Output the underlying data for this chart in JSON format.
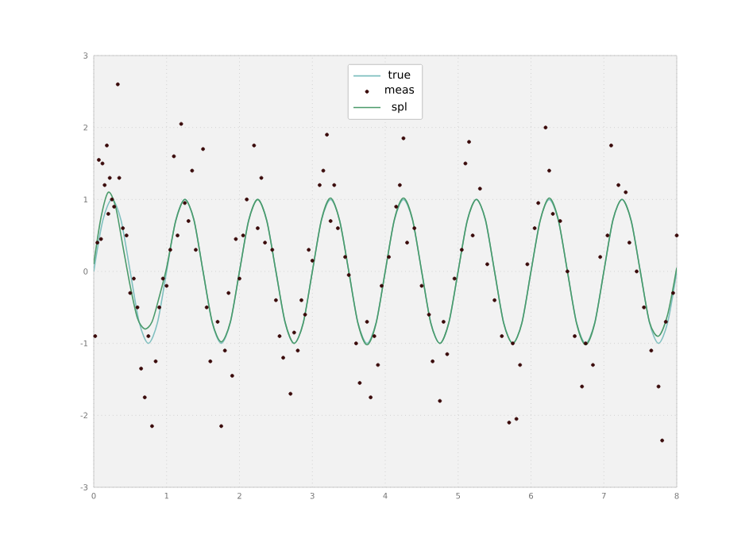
{
  "chart_data": {
    "type": "line",
    "xlim": [
      0,
      8
    ],
    "ylim": [
      -3,
      3
    ],
    "xticks": [
      0,
      1,
      2,
      3,
      4,
      5,
      6,
      7,
      8
    ],
    "yticks": [
      -3,
      -2,
      -1,
      0,
      1,
      2,
      3
    ],
    "grid": true,
    "legend": "top",
    "series": [
      {
        "name": "true",
        "color": "#7fbfbf",
        "x": [
          0,
          0.125,
          0.25,
          0.375,
          0.5,
          0.625,
          0.75,
          0.875,
          1,
          1.125,
          1.25,
          1.375,
          1.5,
          1.625,
          1.75,
          1.875,
          2,
          2.125,
          2.25,
          2.375,
          2.5,
          2.625,
          2.75,
          2.875,
          3,
          3.125,
          3.25,
          3.375,
          3.5,
          3.625,
          3.75,
          3.875,
          4,
          4.125,
          4.25,
          4.375,
          4.5,
          4.625,
          4.75,
          4.875,
          5,
          5.125,
          5.25,
          5.375,
          5.5,
          5.625,
          5.75,
          5.875,
          6,
          6.125,
          6.25,
          6.375,
          6.5,
          6.625,
          6.75,
          6.875,
          7,
          7.125,
          7.25,
          7.375,
          7.5,
          7.625,
          7.75,
          7.875,
          8
        ],
        "values": [
          0,
          0.71,
          1,
          0.71,
          0,
          -0.71,
          -1,
          -0.71,
          0,
          0.71,
          1,
          0.71,
          0,
          -0.71,
          -1,
          -0.71,
          0,
          0.71,
          1,
          0.71,
          0,
          -0.71,
          -1,
          -0.71,
          0,
          0.71,
          1,
          0.71,
          0,
          -0.71,
          -1,
          -0.71,
          0,
          0.71,
          1,
          0.71,
          0,
          -0.71,
          -1,
          -0.71,
          0,
          0.71,
          1,
          0.71,
          0,
          -0.71,
          -1,
          -0.71,
          0,
          0.71,
          1,
          0.71,
          0,
          -0.71,
          -1,
          -0.71,
          0,
          0.71,
          1,
          0.71,
          0,
          -0.71,
          -1,
          -0.71,
          0
        ]
      },
      {
        "name": "meas",
        "type": "scatter",
        "marker": "circle",
        "color": "#3a0a0a",
        "x": [
          0.02,
          0.05,
          0.07,
          0.1,
          0.12,
          0.15,
          0.18,
          0.2,
          0.22,
          0.25,
          0.28,
          0.33,
          0.35,
          0.4,
          0.45,
          0.5,
          0.55,
          0.6,
          0.65,
          0.7,
          0.75,
          0.8,
          0.85,
          0.9,
          0.95,
          1.0,
          1.05,
          1.1,
          1.15,
          1.2,
          1.25,
          1.3,
          1.35,
          1.4,
          1.5,
          1.55,
          1.6,
          1.7,
          1.75,
          1.8,
          1.85,
          1.9,
          1.95,
          2.0,
          2.05,
          2.1,
          2.2,
          2.25,
          2.3,
          2.35,
          2.45,
          2.5,
          2.55,
          2.6,
          2.7,
          2.75,
          2.8,
          2.85,
          2.9,
          2.95,
          3.0,
          3.1,
          3.15,
          3.2,
          3.25,
          3.3,
          3.35,
          3.45,
          3.5,
          3.6,
          3.65,
          3.75,
          3.8,
          3.85,
          3.9,
          3.95,
          4.05,
          4.15,
          4.2,
          4.25,
          4.3,
          4.4,
          4.5,
          4.6,
          4.65,
          4.75,
          4.8,
          4.85,
          4.95,
          5.05,
          5.1,
          5.15,
          5.2,
          5.3,
          5.4,
          5.5,
          5.6,
          5.7,
          5.75,
          5.8,
          5.85,
          5.95,
          6.05,
          6.1,
          6.2,
          6.25,
          6.3,
          6.4,
          6.5,
          6.6,
          6.7,
          6.75,
          6.85,
          6.95,
          7.05,
          7.1,
          7.2,
          7.3,
          7.35,
          7.45,
          7.55,
          7.65,
          7.75,
          7.8,
          7.85,
          7.95,
          8.0
        ],
        "values": [
          -0.9,
          0.4,
          1.55,
          0.45,
          1.5,
          1.2,
          1.75,
          0.8,
          1.3,
          1.0,
          0.9,
          2.6,
          1.3,
          0.6,
          0.5,
          -0.3,
          -0.1,
          -0.5,
          -1.35,
          -1.75,
          -0.9,
          -2.15,
          -1.25,
          -0.5,
          -0.1,
          -0.2,
          0.3,
          1.6,
          0.5,
          2.05,
          0.95,
          0.7,
          1.4,
          0.3,
          1.7,
          -0.5,
          -1.25,
          -0.7,
          -2.15,
          -1.1,
          -0.3,
          -1.45,
          0.45,
          -0.1,
          0.5,
          1.0,
          1.75,
          0.6,
          1.3,
          0.4,
          0.3,
          -0.4,
          -0.9,
          -1.2,
          -1.7,
          -0.85,
          -1.1,
          -0.4,
          -0.6,
          0.3,
          0.15,
          1.2,
          1.4,
          1.9,
          0.7,
          1.2,
          0.6,
          0.2,
          -0.05,
          -1.0,
          -1.55,
          -0.7,
          -1.75,
          -0.9,
          -1.3,
          -0.2,
          0.2,
          0.9,
          1.2,
          1.85,
          0.4,
          0.6,
          -0.2,
          -0.6,
          -1.25,
          -1.8,
          -0.7,
          -1.15,
          -0.1,
          0.3,
          1.5,
          1.8,
          0.5,
          1.15,
          0.1,
          -0.4,
          -0.9,
          -2.1,
          -1.0,
          -2.05,
          -1.3,
          0.1,
          0.6,
          0.95,
          2.0,
          1.4,
          0.8,
          0.7,
          0.0,
          -0.9,
          -1.6,
          -1.0,
          -1.3,
          0.2,
          0.5,
          1.75,
          1.2,
          1.1,
          0.4,
          0.0,
          -0.5,
          -1.1,
          -1.6,
          -2.35,
          -0.7,
          -0.3,
          0.5
        ]
      },
      {
        "name": "spl",
        "color": "#4a9a6a",
        "x": [
          0,
          0.1,
          0.2,
          0.3,
          0.4,
          0.5,
          0.6,
          0.7,
          0.8,
          0.9,
          1,
          1.125,
          1.25,
          1.375,
          1.5,
          1.625,
          1.75,
          1.875,
          2,
          2.125,
          2.25,
          2.375,
          2.5,
          2.625,
          2.75,
          2.875,
          3,
          3.125,
          3.25,
          3.375,
          3.5,
          3.625,
          3.75,
          3.875,
          4,
          4.125,
          4.25,
          4.375,
          4.5,
          4.625,
          4.75,
          4.875,
          5,
          5.125,
          5.25,
          5.375,
          5.5,
          5.625,
          5.75,
          5.875,
          6,
          6.125,
          6.25,
          6.375,
          6.5,
          6.625,
          6.75,
          6.875,
          7,
          7.125,
          7.25,
          7.375,
          7.5,
          7.625,
          7.75,
          7.875,
          8
        ],
        "values": [
          0.1,
          0.75,
          1.1,
          0.9,
          0.35,
          -0.2,
          -0.65,
          -0.8,
          -0.7,
          -0.35,
          0.05,
          0.7,
          1.0,
          0.72,
          0.0,
          -0.7,
          -0.98,
          -0.7,
          0,
          0.7,
          1,
          0.7,
          0,
          -0.7,
          -1,
          -0.72,
          0,
          0.72,
          1.02,
          0.7,
          0,
          -0.72,
          -1.02,
          -0.72,
          0,
          0.72,
          1.02,
          0.72,
          0,
          -0.72,
          -1,
          -0.7,
          0,
          0.7,
          1,
          0.72,
          0,
          -0.72,
          -1,
          -0.72,
          0,
          0.7,
          1.02,
          0.72,
          0,
          -0.72,
          -1.02,
          -0.72,
          0,
          0.72,
          1,
          0.7,
          0,
          -0.7,
          -0.9,
          -0.6,
          0.05
        ]
      }
    ]
  }
}
